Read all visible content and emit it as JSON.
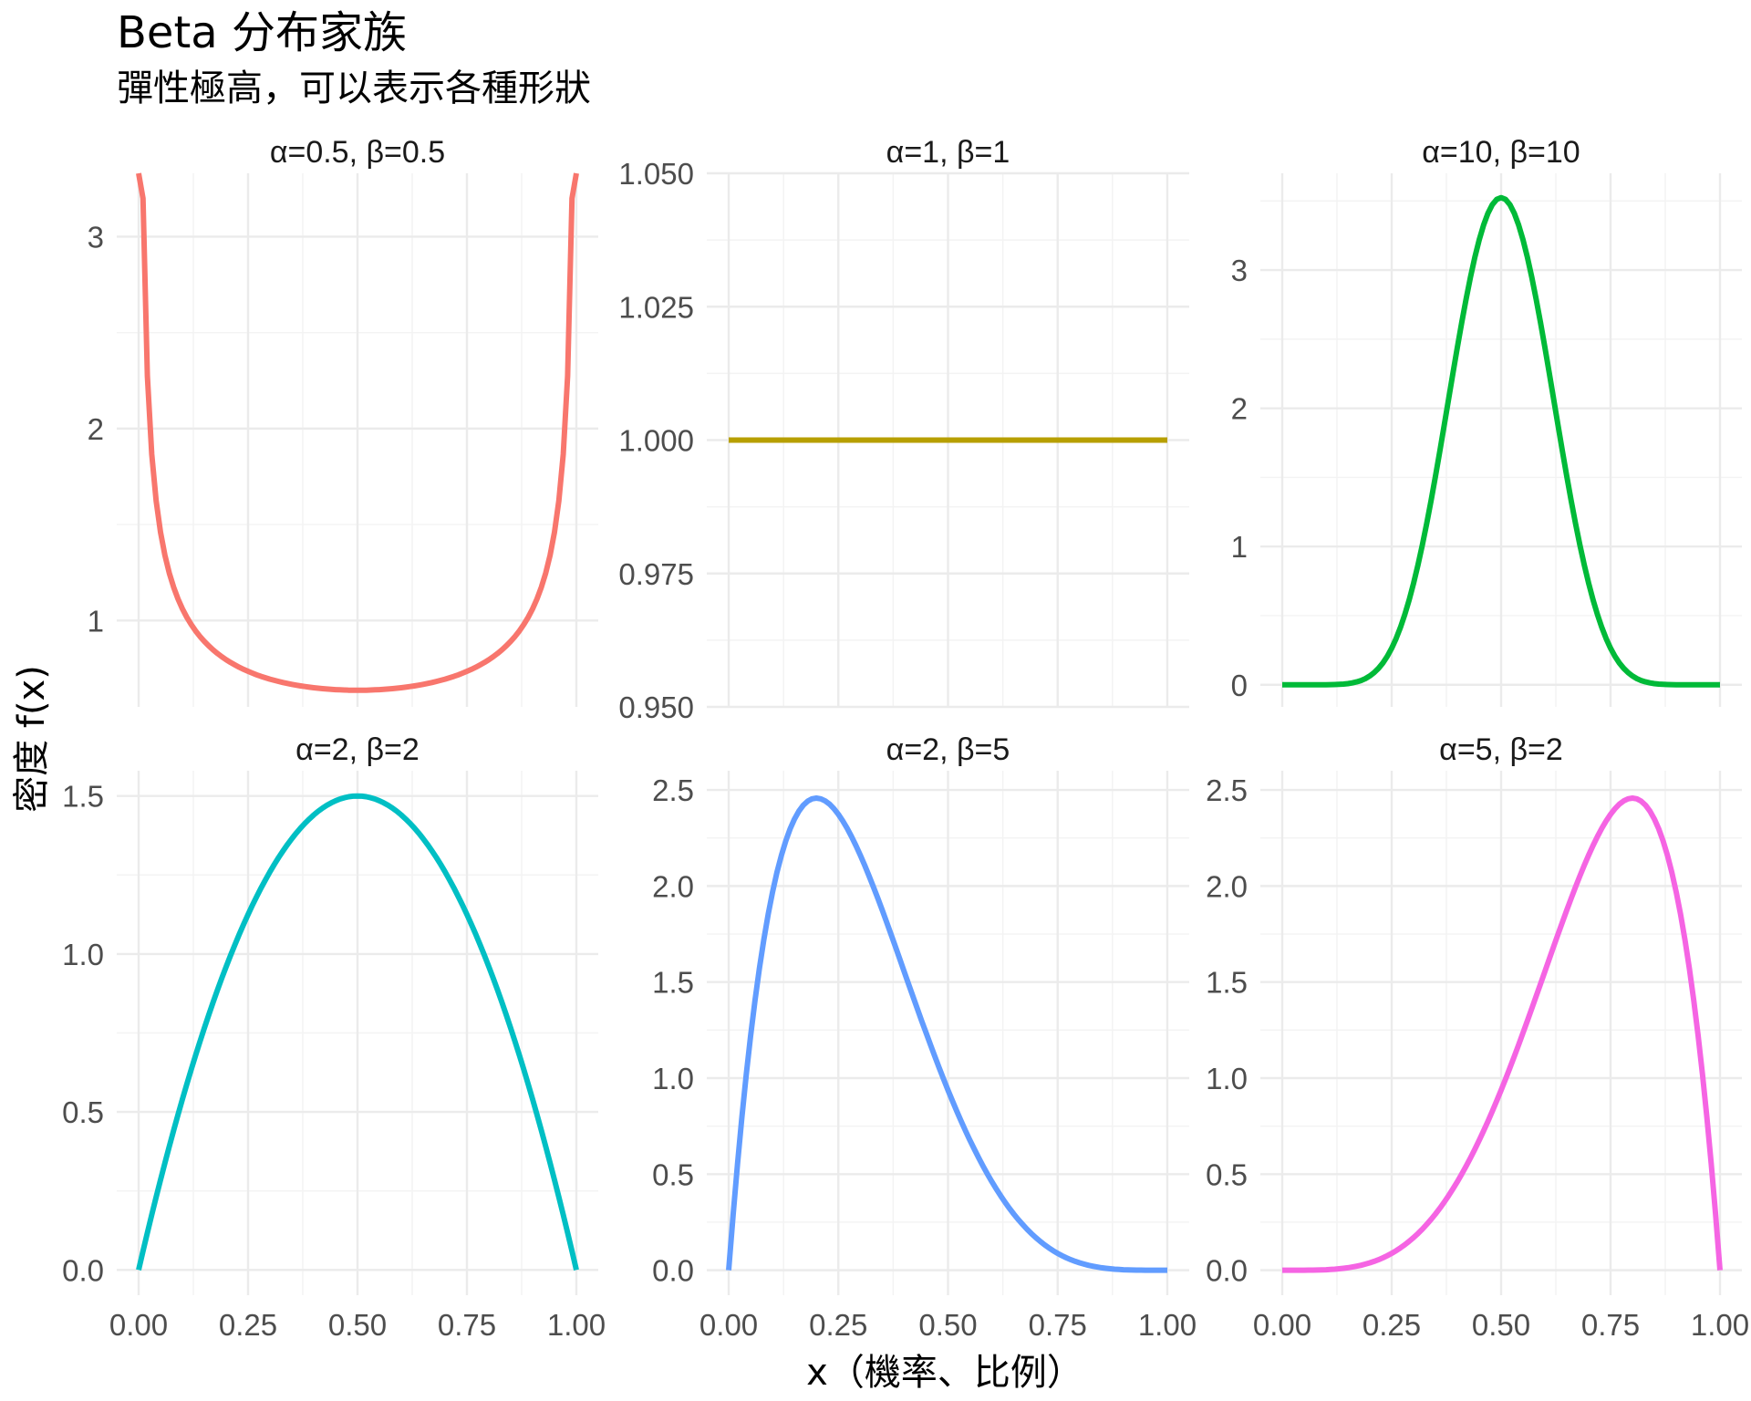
{
  "chart_data": {
    "type": "line",
    "title": "Beta 分布家族",
    "subtitle": "彈性極高，可以表示各種形狀",
    "xlabel": "x（機率、比例）",
    "ylabel": "密度 f(x)",
    "grid": true,
    "facets": [
      {
        "label": "α=0.5, β=0.5",
        "alpha": 0.5,
        "beta": 0.5,
        "color": "#F8766D",
        "ylim": [
          0.55,
          3.33
        ],
        "ymajor": [
          1,
          2,
          3
        ],
        "ytick_labels": [
          "1",
          "2",
          "3"
        ],
        "yminor": [
          0.5,
          1.5,
          2.5
        ],
        "xticks": [
          0,
          0.25,
          0.5,
          0.75,
          1
        ],
        "xtick_labels": [],
        "x": [
          0.0,
          0.01,
          0.05,
          0.1,
          0.2,
          0.3,
          0.4,
          0.5,
          0.6,
          0.7,
          0.8,
          0.9,
          0.95,
          0.99,
          1.0
        ],
        "y": [
          3.33,
          3.2,
          1.46,
          1.06,
          0.8,
          0.69,
          0.65,
          0.64,
          0.65,
          0.69,
          0.8,
          1.06,
          1.46,
          3.2,
          3.33
        ]
      },
      {
        "label": "α=1, β=1",
        "alpha": 1,
        "beta": 1,
        "color": "#B79F00",
        "ylim": [
          0.95,
          1.05
        ],
        "ymajor": [
          0.95,
          0.975,
          1.0,
          1.025,
          1.05
        ],
        "ytick_labels": [
          "0.950",
          "0.975",
          "1.000",
          "1.025",
          "1.050"
        ],
        "yminor": [
          0.9625,
          0.9875,
          1.0125,
          1.0375
        ],
        "xticks": [
          0,
          0.25,
          0.5,
          0.75,
          1
        ],
        "xtick_labels": [],
        "x": [
          0.0,
          1.0
        ],
        "y": [
          1.0,
          1.0
        ]
      },
      {
        "label": "α=10, β=10",
        "alpha": 10,
        "beta": 10,
        "color": "#00BA38",
        "ylim": [
          -0.16,
          3.7
        ],
        "ymajor": [
          0,
          1,
          2,
          3
        ],
        "ytick_labels": [
          "0",
          "1",
          "2",
          "3"
        ],
        "yminor": [
          0.5,
          1.5,
          2.5,
          3.5
        ],
        "xticks": [
          0,
          0.25,
          0.5,
          0.75,
          1
        ],
        "xtick_labels": [],
        "x": [
          0.0,
          0.2,
          0.3,
          0.4,
          0.5,
          0.6,
          0.7,
          0.8,
          1.0
        ],
        "y": [
          0.0,
          0.05,
          0.53,
          2.07,
          3.52,
          2.07,
          0.53,
          0.05,
          0.0
        ]
      },
      {
        "label": "α=2, β=2",
        "alpha": 2,
        "beta": 2,
        "color": "#00BFC4",
        "ylim": [
          -0.08,
          1.58
        ],
        "ymajor": [
          0,
          0.5,
          1.0,
          1.5
        ],
        "ytick_labels": [
          "0.0",
          "0.5",
          "1.0",
          "1.5"
        ],
        "yminor": [
          0.25,
          0.75,
          1.25
        ],
        "xticks": [
          0,
          0.25,
          0.5,
          0.75,
          1
        ],
        "xtick_labels": [
          "0.00",
          "0.25",
          "0.50",
          "0.75",
          "1.00"
        ],
        "x": [
          0.0,
          0.25,
          0.5,
          0.75,
          1.0
        ],
        "y": [
          0.0,
          1.13,
          1.5,
          1.13,
          0.0
        ]
      },
      {
        "label": "α=2, β=5",
        "alpha": 2,
        "beta": 5,
        "color": "#619CFF",
        "ylim": [
          -0.13,
          2.6
        ],
        "ymajor": [
          0,
          0.5,
          1.0,
          1.5,
          2.0,
          2.5
        ],
        "ytick_labels": [
          "0.0",
          "0.5",
          "1.0",
          "1.5",
          "2.0",
          "2.5"
        ],
        "yminor": [
          0.25,
          0.75,
          1.25,
          1.75,
          2.25
        ],
        "xticks": [
          0,
          0.25,
          0.5,
          0.75,
          1
        ],
        "xtick_labels": [
          "0.00",
          "0.25",
          "0.50",
          "0.75",
          "1.00"
        ],
        "x": [
          0.0,
          0.1,
          0.2,
          0.4,
          0.6,
          0.8,
          1.0
        ],
        "y": [
          0.0,
          1.97,
          2.46,
          1.56,
          0.31,
          0.02,
          0.0
        ]
      },
      {
        "label": "α=5, β=2",
        "alpha": 5,
        "beta": 2,
        "color": "#F564E3",
        "ylim": [
          -0.13,
          2.6
        ],
        "ymajor": [
          0,
          0.5,
          1.0,
          1.5,
          2.0,
          2.5
        ],
        "ytick_labels": [
          "0.0",
          "0.5",
          "1.0",
          "1.5",
          "2.0",
          "2.5"
        ],
        "yminor": [
          0.25,
          0.75,
          1.25,
          1.75,
          2.25
        ],
        "xticks": [
          0,
          0.25,
          0.5,
          0.75,
          1
        ],
        "xtick_labels": [
          "0.00",
          "0.25",
          "0.50",
          "0.75",
          "1.00"
        ],
        "x": [
          0.0,
          0.2,
          0.4,
          0.6,
          0.8,
          0.9,
          1.0
        ],
        "y": [
          0.0,
          0.02,
          0.31,
          1.56,
          2.46,
          1.97,
          0.0
        ]
      }
    ]
  }
}
